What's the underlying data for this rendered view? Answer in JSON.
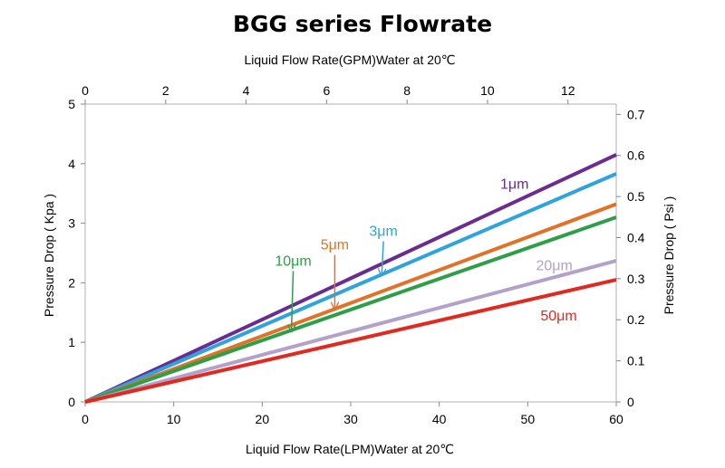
{
  "chart_data": {
    "type": "line",
    "title": "BGG series Flowrate",
    "xlabel": "Liquid Flow Rate(LPM)Water  at  20℃",
    "x2label": "Liquid Flow Rate(GPM)Water  at  20℃",
    "ylabel": "Pressure Drop ( Kpa )",
    "y2label": "Pressure Drop ( Psi )",
    "xlim": [
      0,
      60
    ],
    "ylim": [
      0,
      5
    ],
    "x2lim": [
      0,
      13.2
    ],
    "y2lim": [
      0,
      0.725
    ],
    "x_ticks": [
      0,
      10,
      20,
      30,
      40,
      50,
      60
    ],
    "x2_ticks": [
      0,
      2,
      4,
      6,
      8,
      10,
      12
    ],
    "y_ticks": [
      0,
      1,
      2,
      3,
      4,
      5
    ],
    "y2_ticks": [
      0,
      0.1,
      0.2,
      0.3,
      0.4,
      0.5,
      0.6,
      0.7
    ],
    "y2_tick_labels": [
      "0",
      "0.1",
      "0.2",
      "0.3",
      "0.4",
      "0.5",
      "0.6",
      "0.7"
    ],
    "grid": false,
    "series": [
      {
        "name": "1μm",
        "color": "#6a2c91",
        "x": [
          0,
          60
        ],
        "y": [
          0,
          4.15
        ]
      },
      {
        "name": "3μm",
        "color": "#2ea3dc",
        "x": [
          0,
          60
        ],
        "y": [
          0,
          3.83
        ]
      },
      {
        "name": "5μm",
        "color": "#e07328",
        "x": [
          0,
          60
        ],
        "y": [
          0,
          3.32
        ]
      },
      {
        "name": "10μm",
        "color": "#2e9e48",
        "x": [
          0,
          60
        ],
        "y": [
          0,
          3.1
        ]
      },
      {
        "name": "20μm",
        "color": "#b3a1c9",
        "x": [
          0,
          60
        ],
        "y": [
          0,
          2.37
        ]
      },
      {
        "name": "50μm",
        "color": "#e02a20",
        "x": [
          0,
          60
        ],
        "y": [
          0,
          2.05
        ]
      }
    ],
    "annotations": [
      {
        "text": "1μm",
        "color": "#6a2c91",
        "at": [
          48.5,
          3.67
        ],
        "arrow": false
      },
      {
        "text": "3μm",
        "color": "#2ea3dc",
        "at": [
          33.7,
          2.88
        ],
        "arrow": true,
        "arrow_to": [
          33.5,
          2.12
        ]
      },
      {
        "text": "5μm",
        "color": "#e07328",
        "at": [
          28.2,
          2.65
        ],
        "arrow": true,
        "arrow_to": [
          28.2,
          1.56
        ]
      },
      {
        "text": "10μm",
        "color": "#2e9e48",
        "at": [
          23.5,
          2.38
        ],
        "arrow": true,
        "arrow_to": [
          23.3,
          1.18
        ]
      },
      {
        "text": "20μm",
        "color": "#b3a1c9",
        "at": [
          53.0,
          2.3
        ],
        "arrow": false
      },
      {
        "text": "50μm",
        "color": "#e02a20",
        "at": [
          53.5,
          1.46
        ],
        "arrow": false
      }
    ]
  }
}
